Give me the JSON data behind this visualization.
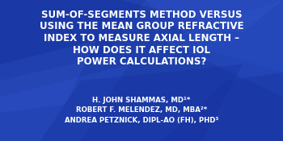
{
  "bg_color": "#1e3faa",
  "bg_dark": "#1a3590",
  "bg_light": "#2a50c8",
  "triangle_color1": "#2a50c8",
  "triangle_color2": "#1530a0",
  "title_lines": [
    "SUM-OF-SEGMENTS METHOD VERSUS",
    "USING THE MEAN GROUP REFRACTIVE",
    "INDEX TO MEASURE AXIAL LENGTH –",
    "HOW DOES IT AFFECT IOL",
    "POWER CALCULATIONS?"
  ],
  "author_lines": [
    "H. JOHN SHAMMAS, MD¹*",
    "ROBERT F. MELENDEZ, MD, MBA²*",
    "ANDREA PETZNICK, DIPL-AO (FH), PHD³"
  ],
  "title_color": "#ffffff",
  "author_color": "#ffffff",
  "title_fontsize": 8.5,
  "author_fontsize": 6.2
}
